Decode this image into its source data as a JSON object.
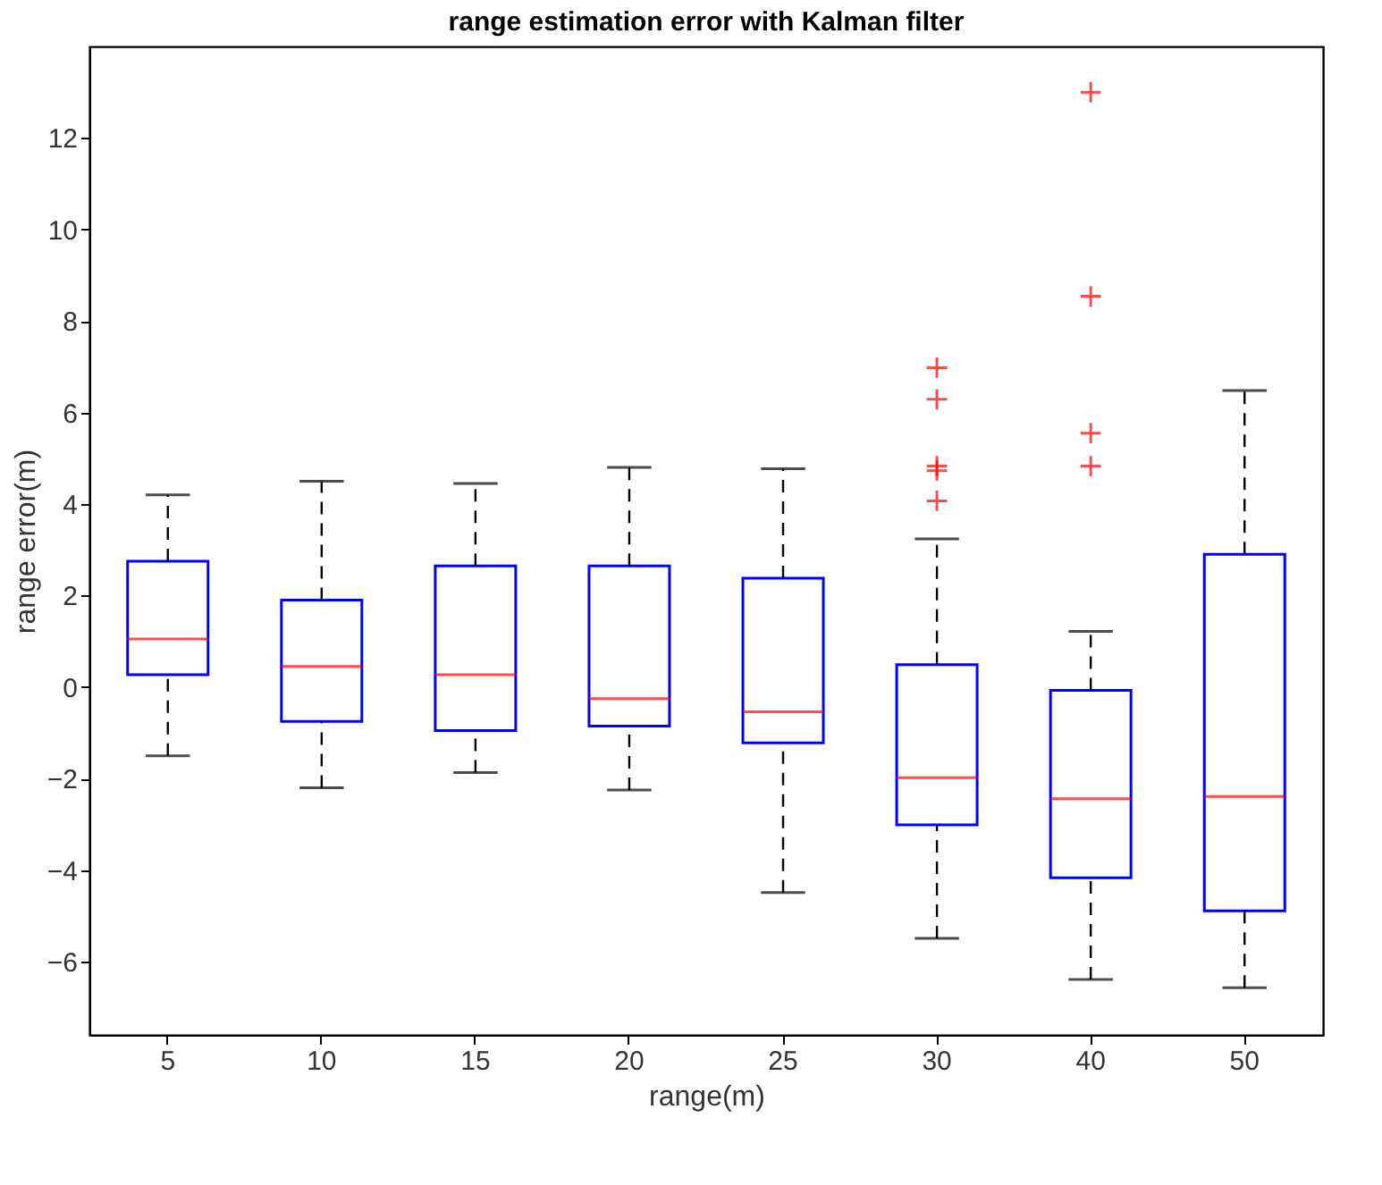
{
  "chart_data": {
    "type": "box",
    "title": "range estimation error with Kalman filter",
    "xlabel": "range(m)",
    "ylabel": "range error(m)",
    "categories": [
      "5",
      "10",
      "15",
      "20",
      "25",
      "30",
      "40",
      "50"
    ],
    "ylim": [
      -7.6,
      14
    ],
    "yticks": [
      -6,
      -4,
      -2,
      0,
      2,
      4,
      6,
      8,
      10,
      12
    ],
    "grid": false,
    "marker": "cross",
    "series": [
      {
        "color": "#0000ff",
        "boxes": [
          {
            "low": -1.5,
            "q1": 0.27,
            "median": 1.05,
            "q3": 2.75,
            "high": 4.2
          },
          {
            "low": -2.2,
            "q1": -0.75,
            "median": 0.45,
            "q3": 1.9,
            "high": 4.5
          },
          {
            "low": -1.87,
            "q1": -0.95,
            "median": 0.27,
            "q3": 2.65,
            "high": 4.45
          },
          {
            "low": -2.25,
            "q1": -0.85,
            "median": -0.25,
            "q3": 2.65,
            "high": 4.8
          },
          {
            "low": -4.49,
            "q1": -1.22,
            "median": -0.54,
            "q3": 2.38,
            "high": 4.77
          },
          {
            "low": -5.49,
            "q1": -3.01,
            "median": -1.98,
            "q3": 0.49,
            "high": 3.24,
            "outliers": [
              6.98,
              6.29,
              4.83,
              4.73,
              4.07
            ]
          },
          {
            "low": -6.39,
            "q1": -4.17,
            "median": -2.44,
            "q3": -0.07,
            "high": 1.22,
            "outliers": [
              13.0,
              8.54,
              5.55,
              4.83
            ]
          },
          {
            "low": -6.57,
            "q1": -4.89,
            "median": -2.39,
            "q3": 2.9,
            "high": 6.48
          }
        ]
      }
    ]
  }
}
